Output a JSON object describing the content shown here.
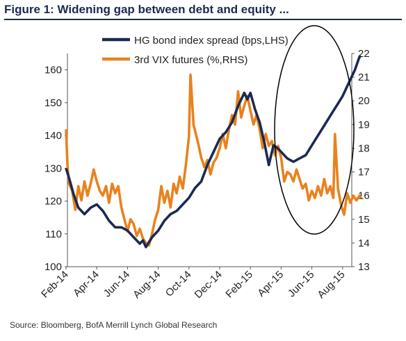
{
  "title": "Figure 1: Widening gap between debt and equity ...",
  "source": "Source:  Bloomberg, BofA Merrill Lynch Global Research",
  "chart_data": {
    "type": "line",
    "legend_position": "top-center",
    "annotation": "ellipse highlighting Apr-15 to Aug-15",
    "x_categories": [
      "Feb-14",
      "Apr-14",
      "Jun-14",
      "Aug-14",
      "Oct-14",
      "Dec-14",
      "Feb-15",
      "Apr-15",
      "Jun-15",
      "Aug-15"
    ],
    "y_left": {
      "min": 100,
      "max": 165,
      "ticks": [
        100,
        110,
        120,
        130,
        140,
        150,
        160
      ]
    },
    "y_right": {
      "min": 13,
      "max": 22,
      "ticks": [
        13,
        14,
        15,
        16,
        17,
        18,
        19,
        20,
        21,
        22
      ]
    },
    "series": [
      {
        "name": "HG bond index spread (bps,LHS)",
        "axis": "left",
        "color": "#1b2a52",
        "points": [
          {
            "x": 0.0,
            "y": 130
          },
          {
            "x": 0.1,
            "y": 127
          },
          {
            "x": 0.25,
            "y": 122
          },
          {
            "x": 0.4,
            "y": 118
          },
          {
            "x": 0.6,
            "y": 116
          },
          {
            "x": 0.8,
            "y": 118
          },
          {
            "x": 1.0,
            "y": 119
          },
          {
            "x": 1.2,
            "y": 117
          },
          {
            "x": 1.4,
            "y": 114
          },
          {
            "x": 1.6,
            "y": 112
          },
          {
            "x": 1.8,
            "y": 112
          },
          {
            "x": 2.0,
            "y": 111
          },
          {
            "x": 2.2,
            "y": 109
          },
          {
            "x": 2.4,
            "y": 107
          },
          {
            "x": 2.5,
            "y": 108
          },
          {
            "x": 2.6,
            "y": 106
          },
          {
            "x": 2.8,
            "y": 109
          },
          {
            "x": 3.0,
            "y": 111
          },
          {
            "x": 3.2,
            "y": 114
          },
          {
            "x": 3.4,
            "y": 116
          },
          {
            "x": 3.6,
            "y": 117
          },
          {
            "x": 3.8,
            "y": 119
          },
          {
            "x": 4.0,
            "y": 121
          },
          {
            "x": 4.2,
            "y": 124
          },
          {
            "x": 4.4,
            "y": 126
          },
          {
            "x": 4.6,
            "y": 131
          },
          {
            "x": 4.8,
            "y": 135
          },
          {
            "x": 5.0,
            "y": 139
          },
          {
            "x": 5.2,
            "y": 141
          },
          {
            "x": 5.4,
            "y": 144
          },
          {
            "x": 5.6,
            "y": 149
          },
          {
            "x": 5.8,
            "y": 153
          },
          {
            "x": 5.9,
            "y": 151
          },
          {
            "x": 6.0,
            "y": 153
          },
          {
            "x": 6.15,
            "y": 148
          },
          {
            "x": 6.3,
            "y": 144
          },
          {
            "x": 6.45,
            "y": 138
          },
          {
            "x": 6.6,
            "y": 131
          },
          {
            "x": 6.75,
            "y": 137
          },
          {
            "x": 6.9,
            "y": 136
          },
          {
            "x": 7.0,
            "y": 135
          },
          {
            "x": 7.2,
            "y": 133
          },
          {
            "x": 7.4,
            "y": 132
          },
          {
            "x": 7.6,
            "y": 133
          },
          {
            "x": 7.8,
            "y": 134
          },
          {
            "x": 8.0,
            "y": 137
          },
          {
            "x": 8.2,
            "y": 140
          },
          {
            "x": 8.4,
            "y": 143
          },
          {
            "x": 8.6,
            "y": 146
          },
          {
            "x": 8.8,
            "y": 149
          },
          {
            "x": 9.0,
            "y": 152
          },
          {
            "x": 9.2,
            "y": 156
          },
          {
            "x": 9.4,
            "y": 160
          },
          {
            "x": 9.55,
            "y": 164
          },
          {
            "x": 9.6,
            "y": 164
          }
        ]
      },
      {
        "name": "3rd VIX futures (%,RHS)",
        "axis": "right",
        "color": "#e8821e",
        "points": [
          {
            "x": 0.0,
            "y": 18.8
          },
          {
            "x": 0.05,
            "y": 17.2
          },
          {
            "x": 0.1,
            "y": 16.5
          },
          {
            "x": 0.2,
            "y": 16.2
          },
          {
            "x": 0.3,
            "y": 15.4
          },
          {
            "x": 0.4,
            "y": 16.4
          },
          {
            "x": 0.5,
            "y": 15.8
          },
          {
            "x": 0.6,
            "y": 16.6
          },
          {
            "x": 0.7,
            "y": 16.0
          },
          {
            "x": 0.8,
            "y": 16.5
          },
          {
            "x": 0.9,
            "y": 17.1
          },
          {
            "x": 1.0,
            "y": 16.6
          },
          {
            "x": 1.1,
            "y": 16.2
          },
          {
            "x": 1.2,
            "y": 16.0
          },
          {
            "x": 1.3,
            "y": 16.4
          },
          {
            "x": 1.4,
            "y": 15.7
          },
          {
            "x": 1.5,
            "y": 16.5
          },
          {
            "x": 1.6,
            "y": 16.1
          },
          {
            "x": 1.7,
            "y": 16.4
          },
          {
            "x": 1.8,
            "y": 15.5
          },
          {
            "x": 1.9,
            "y": 15.0
          },
          {
            "x": 2.0,
            "y": 14.5
          },
          {
            "x": 2.1,
            "y": 15.0
          },
          {
            "x": 2.2,
            "y": 14.8
          },
          {
            "x": 2.3,
            "y": 14.3
          },
          {
            "x": 2.4,
            "y": 14.6
          },
          {
            "x": 2.5,
            "y": 14.2
          },
          {
            "x": 2.6,
            "y": 14.0
          },
          {
            "x": 2.7,
            "y": 13.9
          },
          {
            "x": 2.8,
            "y": 14.4
          },
          {
            "x": 2.9,
            "y": 15.0
          },
          {
            "x": 3.0,
            "y": 15.4
          },
          {
            "x": 3.1,
            "y": 16.4
          },
          {
            "x": 3.2,
            "y": 15.7
          },
          {
            "x": 3.3,
            "y": 16.2
          },
          {
            "x": 3.4,
            "y": 15.5
          },
          {
            "x": 3.5,
            "y": 16.5
          },
          {
            "x": 3.6,
            "y": 16.1
          },
          {
            "x": 3.7,
            "y": 16.8
          },
          {
            "x": 3.8,
            "y": 16.3
          },
          {
            "x": 3.9,
            "y": 17.3
          },
          {
            "x": 4.0,
            "y": 18.5
          },
          {
            "x": 4.05,
            "y": 21.1
          },
          {
            "x": 4.15,
            "y": 19.0
          },
          {
            "x": 4.3,
            "y": 18.2
          },
          {
            "x": 4.4,
            "y": 17.6
          },
          {
            "x": 4.5,
            "y": 17.2
          },
          {
            "x": 4.6,
            "y": 17.5
          },
          {
            "x": 4.7,
            "y": 16.9
          },
          {
            "x": 4.8,
            "y": 17.4
          },
          {
            "x": 4.9,
            "y": 17.6
          },
          {
            "x": 5.0,
            "y": 18.0
          },
          {
            "x": 5.1,
            "y": 18.6
          },
          {
            "x": 5.2,
            "y": 18.0
          },
          {
            "x": 5.3,
            "y": 18.8
          },
          {
            "x": 5.4,
            "y": 19.4
          },
          {
            "x": 5.5,
            "y": 19.0
          },
          {
            "x": 5.6,
            "y": 20.4
          },
          {
            "x": 5.7,
            "y": 19.3
          },
          {
            "x": 5.8,
            "y": 19.8
          },
          {
            "x": 5.9,
            "y": 20.2
          },
          {
            "x": 6.0,
            "y": 19.6
          },
          {
            "x": 6.1,
            "y": 19.0
          },
          {
            "x": 6.2,
            "y": 19.4
          },
          {
            "x": 6.3,
            "y": 18.8
          },
          {
            "x": 6.4,
            "y": 18.0
          },
          {
            "x": 6.5,
            "y": 18.6
          },
          {
            "x": 6.6,
            "y": 18.1
          },
          {
            "x": 6.7,
            "y": 18.3
          },
          {
            "x": 6.8,
            "y": 17.7
          },
          {
            "x": 6.9,
            "y": 18.1
          },
          {
            "x": 7.0,
            "y": 17.6
          },
          {
            "x": 7.1,
            "y": 16.6
          },
          {
            "x": 7.2,
            "y": 17.0
          },
          {
            "x": 7.3,
            "y": 16.9
          },
          {
            "x": 7.4,
            "y": 16.6
          },
          {
            "x": 7.5,
            "y": 17.1
          },
          {
            "x": 7.6,
            "y": 16.7
          },
          {
            "x": 7.7,
            "y": 16.3
          },
          {
            "x": 7.8,
            "y": 16.5
          },
          {
            "x": 7.9,
            "y": 15.8
          },
          {
            "x": 8.0,
            "y": 16.2
          },
          {
            "x": 8.1,
            "y": 15.9
          },
          {
            "x": 8.2,
            "y": 16.4
          },
          {
            "x": 8.3,
            "y": 16.0
          },
          {
            "x": 8.4,
            "y": 16.7
          },
          {
            "x": 8.5,
            "y": 16.1
          },
          {
            "x": 8.6,
            "y": 16.4
          },
          {
            "x": 8.7,
            "y": 15.9
          },
          {
            "x": 8.75,
            "y": 18.6
          },
          {
            "x": 8.85,
            "y": 16.3
          },
          {
            "x": 8.95,
            "y": 15.6
          },
          {
            "x": 9.05,
            "y": 15.2
          },
          {
            "x": 9.15,
            "y": 16.1
          },
          {
            "x": 9.25,
            "y": 15.7
          },
          {
            "x": 9.35,
            "y": 16.0
          },
          {
            "x": 9.45,
            "y": 15.8
          },
          {
            "x": 9.55,
            "y": 16.0
          },
          {
            "x": 9.6,
            "y": 15.9
          }
        ]
      }
    ]
  }
}
